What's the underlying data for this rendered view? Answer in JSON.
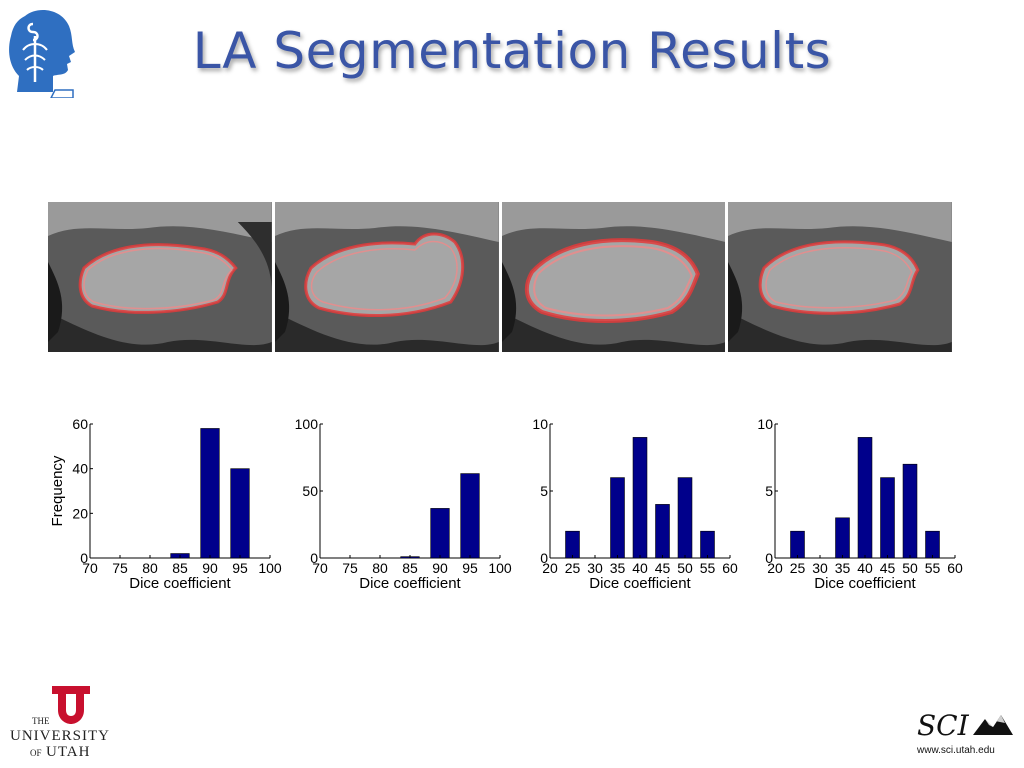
{
  "slide": {
    "title": "LA Segmentation Results"
  },
  "logos": {
    "left_bottom": {
      "line1": "THE",
      "line2": "UNIVERSITY",
      "line3_of": "OF",
      "line3": "UTAH"
    },
    "right_bottom": {
      "mark": "SCI",
      "url": "www.sci.utah.edu"
    }
  },
  "colors": {
    "title": "#3a55a6",
    "bar": "#00008b",
    "contour": "#e23b3b"
  },
  "chart_data": [
    {
      "type": "bar",
      "categories": [
        "85",
        "90",
        "95"
      ],
      "x": [
        85,
        90,
        95
      ],
      "values": [
        2,
        58,
        40
      ],
      "xlabel": "Dice coefficient",
      "ylabel": "Frequency",
      "xlim": [
        70,
        100
      ],
      "ylim": [
        0,
        60
      ],
      "xticks": [
        70,
        75,
        80,
        85,
        90,
        95,
        100
      ],
      "yticks": [
        0,
        20,
        40,
        60
      ],
      "grid": false
    },
    {
      "type": "bar",
      "categories": [
        "85",
        "90",
        "95"
      ],
      "x": [
        85,
        90,
        95
      ],
      "values": [
        1,
        37,
        63
      ],
      "xlabel": "Dice coefficient",
      "ylabel": "",
      "xlim": [
        70,
        100
      ],
      "ylim": [
        0,
        100
      ],
      "xticks": [
        70,
        75,
        80,
        85,
        90,
        95,
        100
      ],
      "yticks": [
        0,
        50,
        100
      ],
      "grid": false
    },
    {
      "type": "bar",
      "categories": [
        "25",
        "35",
        "40",
        "45",
        "50",
        "55"
      ],
      "x": [
        25,
        35,
        40,
        45,
        50,
        55
      ],
      "values": [
        2,
        6,
        9,
        4,
        6,
        2
      ],
      "xlabel": "Dice coefficient",
      "ylabel": "",
      "xlim": [
        20,
        60
      ],
      "ylim": [
        0,
        10
      ],
      "xticks": [
        20,
        25,
        30,
        35,
        40,
        45,
        50,
        55,
        60
      ],
      "yticks": [
        0,
        5,
        10
      ],
      "grid": false
    },
    {
      "type": "bar",
      "categories": [
        "25",
        "35",
        "40",
        "45",
        "50",
        "55"
      ],
      "x": [
        25,
        35,
        40,
        45,
        50,
        55
      ],
      "values": [
        2,
        3,
        9,
        6,
        7,
        2
      ],
      "xlabel": "Dice coefficient",
      "ylabel": "",
      "xlim": [
        20,
        60
      ],
      "ylim": [
        0,
        10
      ],
      "xticks": [
        20,
        25,
        30,
        35,
        40,
        45,
        50,
        55,
        60
      ],
      "yticks": [
        0,
        5,
        10
      ],
      "grid": false
    }
  ]
}
